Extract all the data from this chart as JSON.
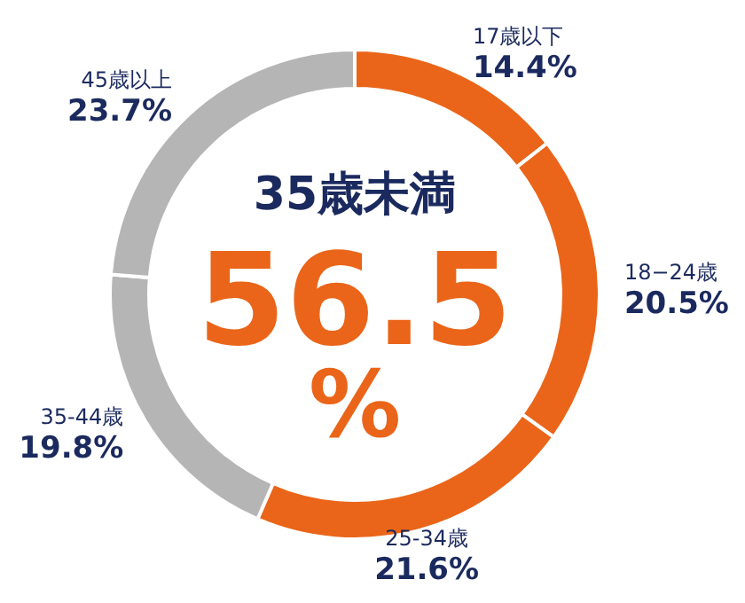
{
  "chart_data": {
    "type": "donut",
    "categories": [
      "17歳以下",
      "18−24歳",
      "25-34歳",
      "35-44歳",
      "45歳以上"
    ],
    "values": [
      14.4,
      20.5,
      21.6,
      19.8,
      23.7
    ],
    "value_labels": [
      "14.4%",
      "20.5%",
      "21.6%",
      "19.8%",
      "23.7%"
    ],
    "colors": [
      "#ea6519",
      "#ea6519",
      "#ea6519",
      "#b5b5b5",
      "#b5b5b5"
    ],
    "annotations": [
      "35歳未満",
      "56.5",
      "%"
    ]
  }
}
